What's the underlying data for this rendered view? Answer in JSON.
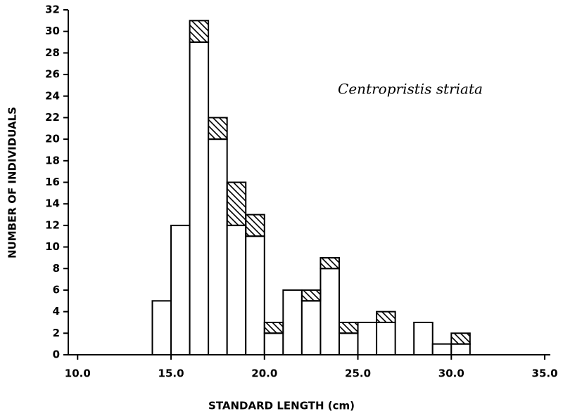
{
  "chart_data": {
    "type": "histogram",
    "bins": [
      14,
      15,
      16,
      17,
      18,
      19,
      20,
      21,
      22,
      23,
      24,
      25,
      26,
      27,
      28,
      29,
      30,
      31
    ],
    "series": [
      {
        "color": "#ffffff",
        "pattern": "none",
        "values": [
          5,
          12,
          29,
          20,
          12,
          11,
          2,
          6,
          5,
          8,
          2,
          3,
          3,
          0,
          3,
          1,
          1
        ]
      },
      {
        "color": "#ffffff",
        "pattern": "hatch",
        "values": [
          0,
          0,
          2,
          2,
          4,
          2,
          1,
          0,
          1,
          1,
          1,
          0,
          1,
          0,
          0,
          0,
          1
        ]
      }
    ],
    "xlabel": "STANDARD LENGTH (cm)",
    "ylabel": "NUMBER OF INDIVIDUALS",
    "annotation": "Centropristis striata",
    "xlim": [
      9.5,
      35.3
    ],
    "xticks": [
      {
        "value": 10,
        "label": "10.0"
      },
      {
        "value": 15,
        "label": "15.0"
      },
      {
        "value": 20,
        "label": "20.0"
      },
      {
        "value": 25,
        "label": "25.0"
      },
      {
        "value": 30,
        "label": "30.0"
      },
      {
        "value": 35,
        "label": "35.0"
      }
    ],
    "ylim": [
      0,
      32
    ],
    "yticks": [
      0,
      2,
      4,
      6,
      8,
      10,
      12,
      14,
      16,
      18,
      20,
      22,
      24,
      26,
      28,
      30,
      32
    ],
    "grid": false
  }
}
